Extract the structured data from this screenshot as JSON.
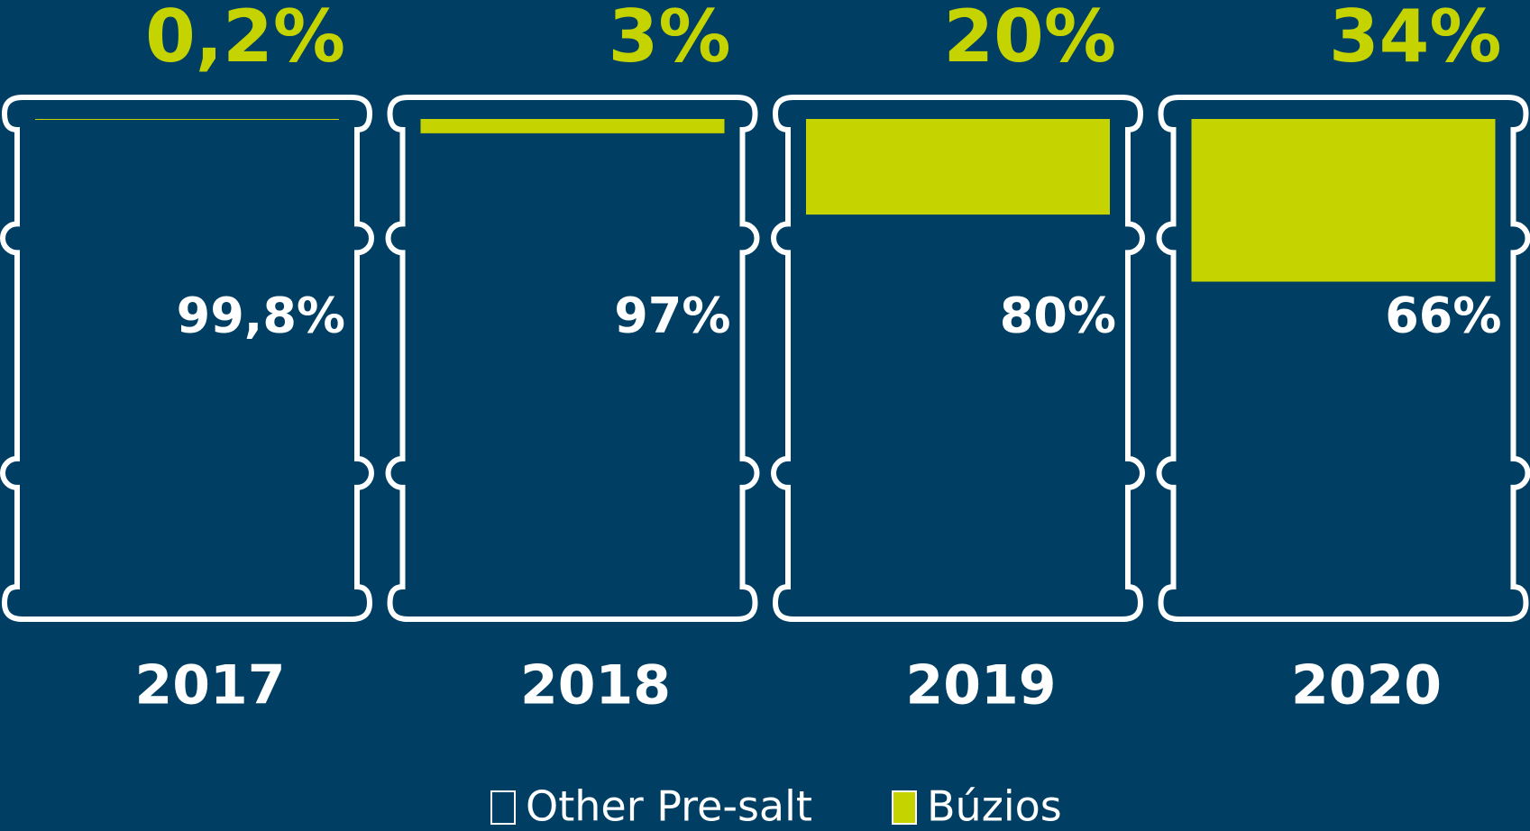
{
  "chart_data": {
    "type": "barrel",
    "categories": [
      "2017",
      "2018",
      "2019",
      "2020"
    ],
    "series": [
      {
        "name": "Other Pre-salt",
        "color": "#003f63",
        "values": [
          99.8,
          97,
          80,
          66
        ],
        "value_labels": [
          "99,8%",
          "97%",
          "80%",
          "66%"
        ]
      },
      {
        "name": "Búzios",
        "color": "#c5d400",
        "values": [
          0.2,
          3,
          20,
          34
        ],
        "value_labels": [
          "0,2%",
          "3%",
          "20%",
          "34%"
        ]
      }
    ],
    "ylim": [
      0,
      100
    ]
  }
}
